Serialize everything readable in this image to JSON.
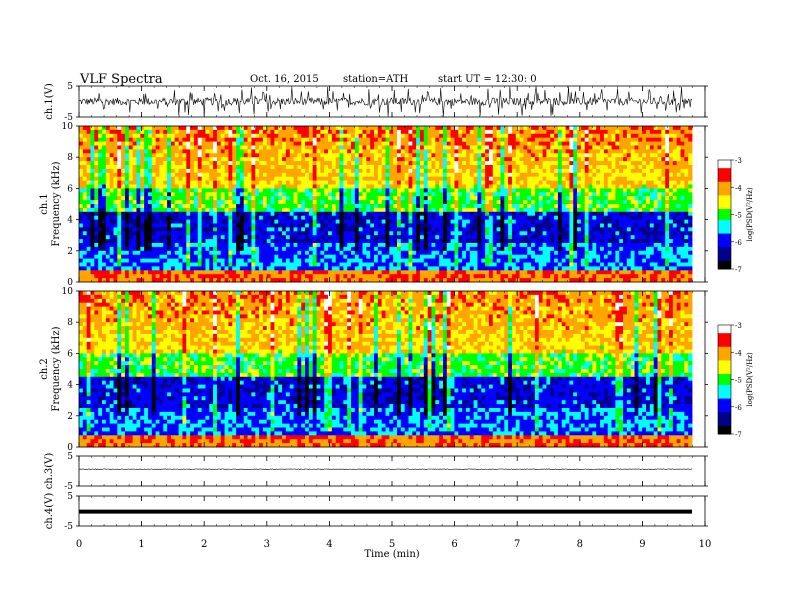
{
  "header": {
    "title": "VLF  Spectra",
    "date": "Oct. 16, 2015",
    "station": "station=ATH",
    "start": "start  UT  =   12:30: 0"
  },
  "colors": {
    "low": "#000000",
    "blue_dark": "#00008b",
    "blue": "#0000ff",
    "cyan": "#00ffff",
    "green": "#00ff00",
    "yellow": "#ffff00",
    "orange": "#ffa500",
    "red": "#ff0000",
    "white": "#ffffff"
  },
  "chart_data": [
    {
      "type": "line",
      "name": "ch.1 waveform",
      "ylabel": "ch.1(V)",
      "ylim": [
        -5,
        5
      ],
      "yticks": [
        "5",
        "-5"
      ],
      "xlim": [
        0,
        10
      ],
      "signal": {
        "center": 0,
        "amplitude": 1.2,
        "spikes": 90
      }
    },
    {
      "type": "heatmap",
      "name": "ch.1 spectrogram",
      "ylabel_top": "ch.1",
      "ylabel": "Frequency  (kHz)",
      "ylim": [
        0,
        10
      ],
      "yticks": [
        "0",
        "2",
        "4",
        "6",
        "8",
        "10"
      ],
      "xlim": [
        0,
        9.8
      ],
      "colorbar": {
        "label": "log(PSD(V²/Hz)",
        "range": [
          -7,
          -3
        ],
        "ticks": [
          "-3",
          "-4",
          "-5",
          "-6",
          "-7"
        ]
      }
    },
    {
      "type": "heatmap",
      "name": "ch.2 spectrogram",
      "ylabel_top": "ch.2",
      "ylabel": "Frequency  (kHz)",
      "ylim": [
        0,
        10
      ],
      "yticks": [
        "0",
        "2",
        "4",
        "6",
        "8",
        "10"
      ],
      "xlim": [
        0,
        9.8
      ],
      "colorbar": {
        "label": "log(PSD(V²/Hz)",
        "range": [
          -7,
          -3
        ],
        "ticks": [
          "-3",
          "-4",
          "-5",
          "-6",
          "-7"
        ]
      }
    },
    {
      "type": "line",
      "name": "ch.3 waveform",
      "ylabel": "ch.3(V)",
      "ylim": [
        -5,
        5
      ],
      "yticks": [
        "5",
        "-5"
      ],
      "xlim": [
        0,
        10
      ],
      "signal": {
        "center": 0.6,
        "amplitude": 0.1
      }
    },
    {
      "type": "line",
      "name": "ch.4 waveform",
      "ylabel": "ch.4(V)",
      "ylim": [
        -5,
        5
      ],
      "yticks": [
        "5",
        "-5"
      ],
      "xlim": [
        0,
        10
      ],
      "signal": {
        "center": -0.2,
        "amplitude": 0.0
      }
    }
  ],
  "x_axis": {
    "label": "Time  (min)",
    "range": [
      0,
      10
    ],
    "ticks": [
      "0",
      "1",
      "2",
      "3",
      "4",
      "5",
      "6",
      "7",
      "8",
      "9",
      "10"
    ]
  }
}
